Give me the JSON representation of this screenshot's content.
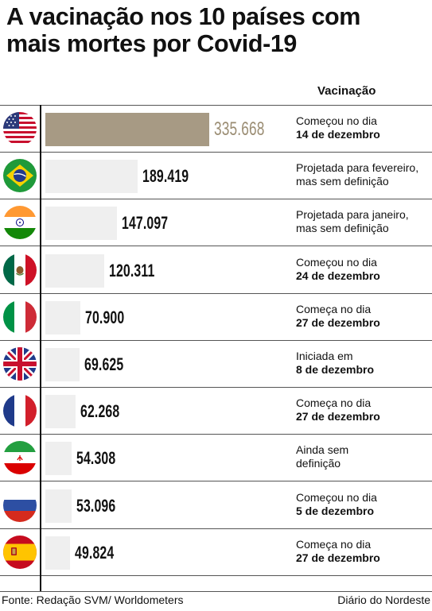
{
  "title_lines": [
    "A vacinação nos 10 países com",
    "mais mortes por Covid-19"
  ],
  "vaccination_header": "Vacinação",
  "colors": {
    "highlight_bar": "#a79a84",
    "highlight_text": "#9a8c72",
    "bar": "#efefef",
    "text": "#111111"
  },
  "chart_data": {
    "type": "bar",
    "title": "A vacinação nos 10 países com mais mortes por Covid-19",
    "categories": [
      "usa-flag",
      "brazil-flag",
      "india-flag",
      "mexico-flag",
      "italy-flag",
      "uk-flag",
      "france-flag",
      "iran-flag",
      "russia-flag",
      "spain-flag"
    ],
    "values": [
      335668,
      189419,
      147097,
      120311,
      70900,
      69625,
      62268,
      54308,
      53096,
      49824
    ],
    "value_labels": [
      "335.668",
      "189.419",
      "147.097",
      "120.311",
      "70.900",
      "69.625",
      "62.268",
      "54.308",
      "53.096",
      "49.824"
    ],
    "orientation": "horizontal",
    "grid": false
  },
  "rows": [
    {
      "flag": "usa-flag",
      "value_label": "335.668",
      "highlight": true,
      "vac_line1": "Começou no dia",
      "vac_line2": "14 de dezembro",
      "vac_line2_bold": true
    },
    {
      "flag": "brazil-flag",
      "value_label": "189.419",
      "highlight": false,
      "vac_line1": "Projetada para fevereiro,",
      "vac_line2": "mas sem definição",
      "vac_line2_bold": false
    },
    {
      "flag": "india-flag",
      "value_label": "147.097",
      "highlight": false,
      "vac_line1": "Projetada para janeiro,",
      "vac_line2": "mas sem definição",
      "vac_line2_bold": false
    },
    {
      "flag": "mexico-flag",
      "value_label": "120.311",
      "highlight": false,
      "vac_line1": "Começou no dia",
      "vac_line2": "24 de dezembro",
      "vac_line2_bold": true
    },
    {
      "flag": "italy-flag",
      "value_label": "70.900",
      "highlight": false,
      "vac_line1": "Começa no dia",
      "vac_line2": "27 de dezembro",
      "vac_line2_bold": true
    },
    {
      "flag": "uk-flag",
      "value_label": "69.625",
      "highlight": false,
      "vac_line1": "Iniciada em",
      "vac_line2": "8 de dezembro",
      "vac_line2_bold": true
    },
    {
      "flag": "france-flag",
      "value_label": "62.268",
      "highlight": false,
      "vac_line1": "Começa no dia",
      "vac_line2": "27 de dezembro",
      "vac_line2_bold": true
    },
    {
      "flag": "iran-flag",
      "value_label": "54.308",
      "highlight": false,
      "vac_line1": "Ainda sem",
      "vac_line2": "definição",
      "vac_line2_bold": false
    },
    {
      "flag": "russia-flag",
      "value_label": "53.096",
      "highlight": false,
      "vac_line1": "Começou no dia",
      "vac_line2": "5 de dezembro",
      "vac_line2_bold": true
    },
    {
      "flag": "spain-flag",
      "value_label": "49.824",
      "highlight": false,
      "vac_line1": "Começa no dia",
      "vac_line2": "27 de dezembro",
      "vac_line2_bold": true
    }
  ],
  "footer": {
    "source": "Fonte: Redação SVM/ Worldometers",
    "credit": "Diário do Nordeste"
  }
}
